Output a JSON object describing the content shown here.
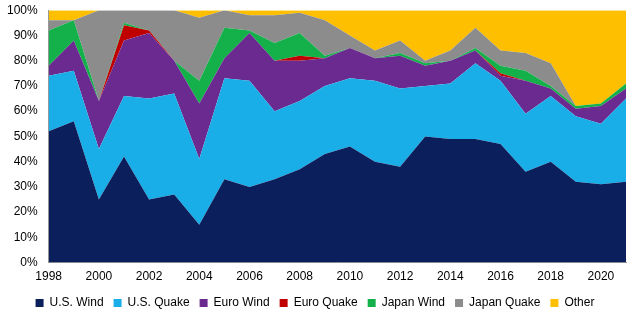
{
  "chart_data": {
    "type": "area",
    "stacked": true,
    "grid": false,
    "legend": "bottom",
    "categories": [
      "1998",
      null,
      "2000",
      null,
      "2002",
      null,
      "2004",
      null,
      "2006",
      null,
      "2008",
      null,
      "2010",
      null,
      "2012",
      null,
      "2014",
      null,
      "2016",
      null,
      "2018",
      null,
      "2020",
      null
    ],
    "ylim": [
      0,
      100
    ],
    "yticks": [
      {
        "value": 0,
        "label": "0%"
      },
      {
        "value": 10,
        "label": "10%"
      },
      {
        "value": 20,
        "label": "20%"
      },
      {
        "value": 30,
        "label": "30%"
      },
      {
        "value": 40,
        "label": "40%"
      },
      {
        "value": 50,
        "label": "50%"
      },
      {
        "value": 60,
        "label": "60%"
      },
      {
        "value": 70,
        "label": "70%"
      },
      {
        "value": 80,
        "label": "80%"
      },
      {
        "value": 90,
        "label": "90%"
      },
      {
        "value": 100,
        "label": "100%"
      }
    ],
    "series": [
      {
        "name": "U.S. Wind",
        "color": "#0b1f5c",
        "values": [
          52,
          56,
          25,
          42,
          25,
          27,
          15,
          33,
          30,
          33,
          37,
          43,
          46,
          40,
          38,
          50,
          49,
          49,
          47,
          36,
          40,
          32,
          31,
          32
        ]
      },
      {
        "name": "U.S. Quake",
        "color": "#1aaee8",
        "values": [
          22,
          20,
          20,
          24,
          40,
          40,
          26,
          40,
          42,
          27,
          27,
          27,
          27,
          32,
          31,
          20,
          22,
          30,
          25,
          23,
          26,
          26,
          24,
          33
        ]
      },
      {
        "name": "Euro Wind",
        "color": "#6a2a8f",
        "values": [
          4,
          12,
          19,
          22,
          26,
          13,
          22,
          8,
          19,
          20,
          16,
          11,
          12,
          9,
          13,
          8,
          9,
          5,
          2,
          13,
          3,
          3,
          7,
          4
        ]
      },
      {
        "name": "Euro Quake",
        "color": "#c00000",
        "values": [
          0,
          0,
          0,
          6,
          1,
          0,
          0,
          0,
          0,
          0,
          2,
          0,
          0,
          0,
          0,
          0,
          0,
          0,
          1,
          0,
          0,
          0,
          0,
          0
        ]
      },
      {
        "name": "Japan Wind",
        "color": "#14b04a",
        "values": [
          14,
          8,
          0,
          1,
          0,
          0,
          9,
          12,
          1,
          7,
          9,
          1,
          0,
          0,
          1,
          1,
          0,
          1,
          3,
          4,
          1,
          1,
          1,
          2
        ]
      },
      {
        "name": "Japan Quake",
        "color": "#8c8c8c",
        "values": [
          4,
          0,
          36,
          5,
          8,
          20,
          25,
          7,
          6,
          11,
          8,
          14,
          5,
          3,
          5,
          1,
          4,
          8,
          6,
          7,
          9,
          0,
          0,
          0
        ]
      },
      {
        "name": "Other",
        "color": "#fdbf00",
        "values": [
          4,
          4,
          0,
          0,
          0,
          0,
          3,
          0,
          2,
          2,
          1,
          4,
          10,
          16,
          12,
          20,
          16,
          7,
          16,
          17,
          21,
          38,
          37,
          29
        ]
      }
    ]
  }
}
